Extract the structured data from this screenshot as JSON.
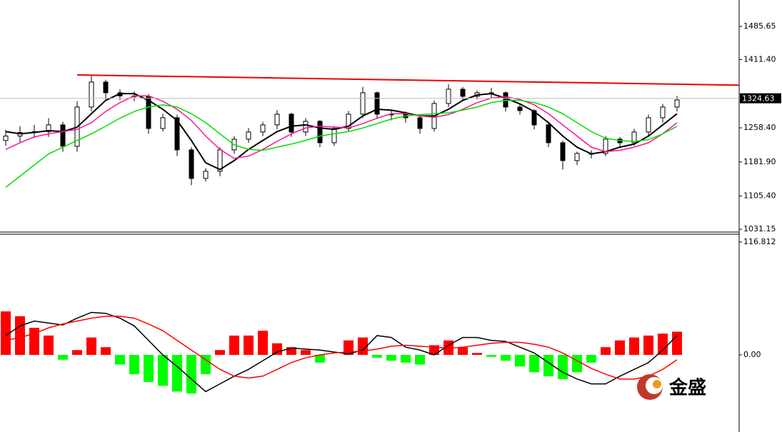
{
  "chart_data": [
    {
      "type": "candlestick",
      "open": [
        1230,
        1240,
        1248,
        1250,
        1265,
        1217,
        1305,
        1361,
        1337,
        1330,
        1329,
        1257,
        1281,
        1209,
        1145,
        1161,
        1209,
        1233,
        1249,
        1265,
        1289,
        1249,
        1273,
        1225,
        1257,
        1289,
        1337,
        1289,
        1289,
        1281,
        1257,
        1313,
        1345,
        1329,
        1337,
        1337,
        1305,
        1297,
        1265,
        1225,
        1185,
        1201,
        1201,
        1233,
        1225,
        1249,
        1281,
        1305
      ],
      "high": [
        1254,
        1262,
        1265,
        1280,
        1272,
        1318,
        1375,
        1366,
        1345,
        1340,
        1334,
        1290,
        1288,
        1215,
        1168,
        1215,
        1240,
        1258,
        1272,
        1298,
        1292,
        1280,
        1276,
        1262,
        1296,
        1350,
        1340,
        1297,
        1295,
        1286,
        1320,
        1356,
        1350,
        1342,
        1348,
        1340,
        1312,
        1300,
        1270,
        1230,
        1205,
        1208,
        1240,
        1238,
        1256,
        1288,
        1312,
        1330
      ],
      "low": [
        1218,
        1226,
        1236,
        1238,
        1205,
        1205,
        1295,
        1322,
        1320,
        1318,
        1245,
        1250,
        1195,
        1130,
        1138,
        1150,
        1200,
        1225,
        1240,
        1255,
        1238,
        1240,
        1215,
        1218,
        1250,
        1280,
        1278,
        1275,
        1270,
        1245,
        1250,
        1305,
        1318,
        1322,
        1325,
        1295,
        1288,
        1255,
        1215,
        1165,
        1175,
        1190,
        1195,
        1215,
        1218,
        1240,
        1270,
        1295
      ],
      "close": [
        1240,
        1248,
        1250,
        1265,
        1217,
        1305,
        1361,
        1337,
        1330,
        1329,
        1257,
        1281,
        1209,
        1145,
        1161,
        1209,
        1233,
        1249,
        1265,
        1289,
        1249,
        1273,
        1225,
        1257,
        1289,
        1337,
        1289,
        1289,
        1281,
        1257,
        1313,
        1345,
        1329,
        1337,
        1337,
        1305,
        1297,
        1265,
        1225,
        1185,
        1201,
        1201,
        1233,
        1225,
        1249,
        1281,
        1305,
        1321
      ],
      "up_color": "#ffffff",
      "down_color": "#000000",
      "outline_color": "#000000",
      "series": [
        {
          "color": "#000000",
          "values": [
            1250,
            1245,
            1248,
            1252,
            1250,
            1260,
            1290,
            1320,
            1335,
            1335,
            1320,
            1300,
            1275,
            1230,
            1180,
            1165,
            1185,
            1210,
            1230,
            1250,
            1262,
            1265,
            1258,
            1255,
            1262,
            1285,
            1300,
            1298,
            1292,
            1285,
            1285,
            1300,
            1320,
            1332,
            1335,
            1325,
            1312,
            1295,
            1270,
            1240,
            1215,
            1200,
            1205,
            1215,
            1222,
            1240,
            1265,
            1290
          ]
        },
        {
          "color": "#ff1493",
          "values": [
            1210,
            1225,
            1238,
            1245,
            1250,
            1255,
            1270,
            1295,
            1315,
            1330,
            1330,
            1318,
            1300,
            1275,
            1240,
            1210,
            1190,
            1195,
            1210,
            1228,
            1245,
            1258,
            1262,
            1260,
            1258,
            1268,
            1280,
            1290,
            1290,
            1285,
            1282,
            1288,
            1300,
            1315,
            1325,
            1328,
            1322,
            1310,
            1290,
            1265,
            1240,
            1215,
            1205,
            1208,
            1215,
            1225,
            1245,
            1270
          ]
        },
        {
          "color": "#00e000",
          "values": [
            1125,
            1150,
            1175,
            1200,
            1215,
            1230,
            1245,
            1262,
            1280,
            1295,
            1305,
            1310,
            1305,
            1290,
            1270,
            1245,
            1220,
            1210,
            1208,
            1215,
            1222,
            1230,
            1240,
            1245,
            1250,
            1258,
            1268,
            1278,
            1285,
            1288,
            1290,
            1292,
            1298,
            1305,
            1315,
            1320,
            1320,
            1315,
            1305,
            1290,
            1270,
            1250,
            1235,
            1230,
            1228,
            1232,
            1245,
            1262
          ]
        }
      ],
      "trendline": {
        "color": "#ee0000",
        "values": [
          1377,
          1354
        ]
      },
      "current_price": 1324.63,
      "ylim": [
        1024.8,
        1544.9
      ],
      "yticks": [
        1485.65,
        {
          "value": 1411.4,
          "label": "1411.40"
        },
        {
          "value": 1258.4,
          "label": "1258.40"
        },
        {
          "value": 1181.9,
          "label": "1181.90"
        },
        {
          "value": 1105.4,
          "label": "1105.40"
        },
        1031.15
      ]
    },
    {
      "type": "bar",
      "values": [
        45,
        40,
        28,
        20,
        -5,
        5,
        18,
        8,
        -10,
        -20,
        -28,
        -32,
        -38,
        -40,
        -20,
        5,
        20,
        20,
        25,
        12,
        8,
        5,
        -8,
        0,
        15,
        18,
        -3,
        -6,
        -8,
        -10,
        10,
        15,
        8,
        2,
        -2,
        -6,
        -12,
        -18,
        -22,
        -25,
        -18,
        -8,
        8,
        15,
        18,
        20,
        22,
        24
      ],
      "color_up": "#ff0000",
      "color_down": "#00ff00",
      "series": [
        {
          "color": "#000000",
          "values": [
            20,
            30,
            35,
            33,
            31,
            38,
            44,
            43,
            38,
            30,
            15,
            0,
            -12,
            -25,
            -38,
            -30,
            -22,
            -15,
            -6,
            3,
            7,
            6,
            5,
            3,
            1,
            5,
            20,
            18,
            8,
            5,
            0,
            10,
            18,
            18,
            15,
            14,
            8,
            2,
            -8,
            -18,
            -25,
            -30,
            -30,
            -22,
            -15,
            -8,
            5,
            20
          ]
        },
        {
          "color": "#ff0000",
          "values": [
            15,
            18,
            22,
            28,
            32,
            35,
            38,
            40,
            40,
            38,
            32,
            25,
            15,
            5,
            -5,
            -15,
            -22,
            -24,
            -22,
            -15,
            -8,
            -3,
            0,
            2,
            3,
            4,
            6,
            9,
            10,
            9,
            8,
            7,
            8,
            10,
            12,
            13,
            13,
            11,
            8,
            2,
            -6,
            -14,
            -20,
            -25,
            -25,
            -22,
            -15,
            -5
          ]
        }
      ],
      "ylim": [
        -79.8,
        124.9
      ],
      "yticks": [
        116.812,
        {
          "value": 0,
          "label": "0.00"
        }
      ]
    }
  ],
  "watermark": "金盛"
}
